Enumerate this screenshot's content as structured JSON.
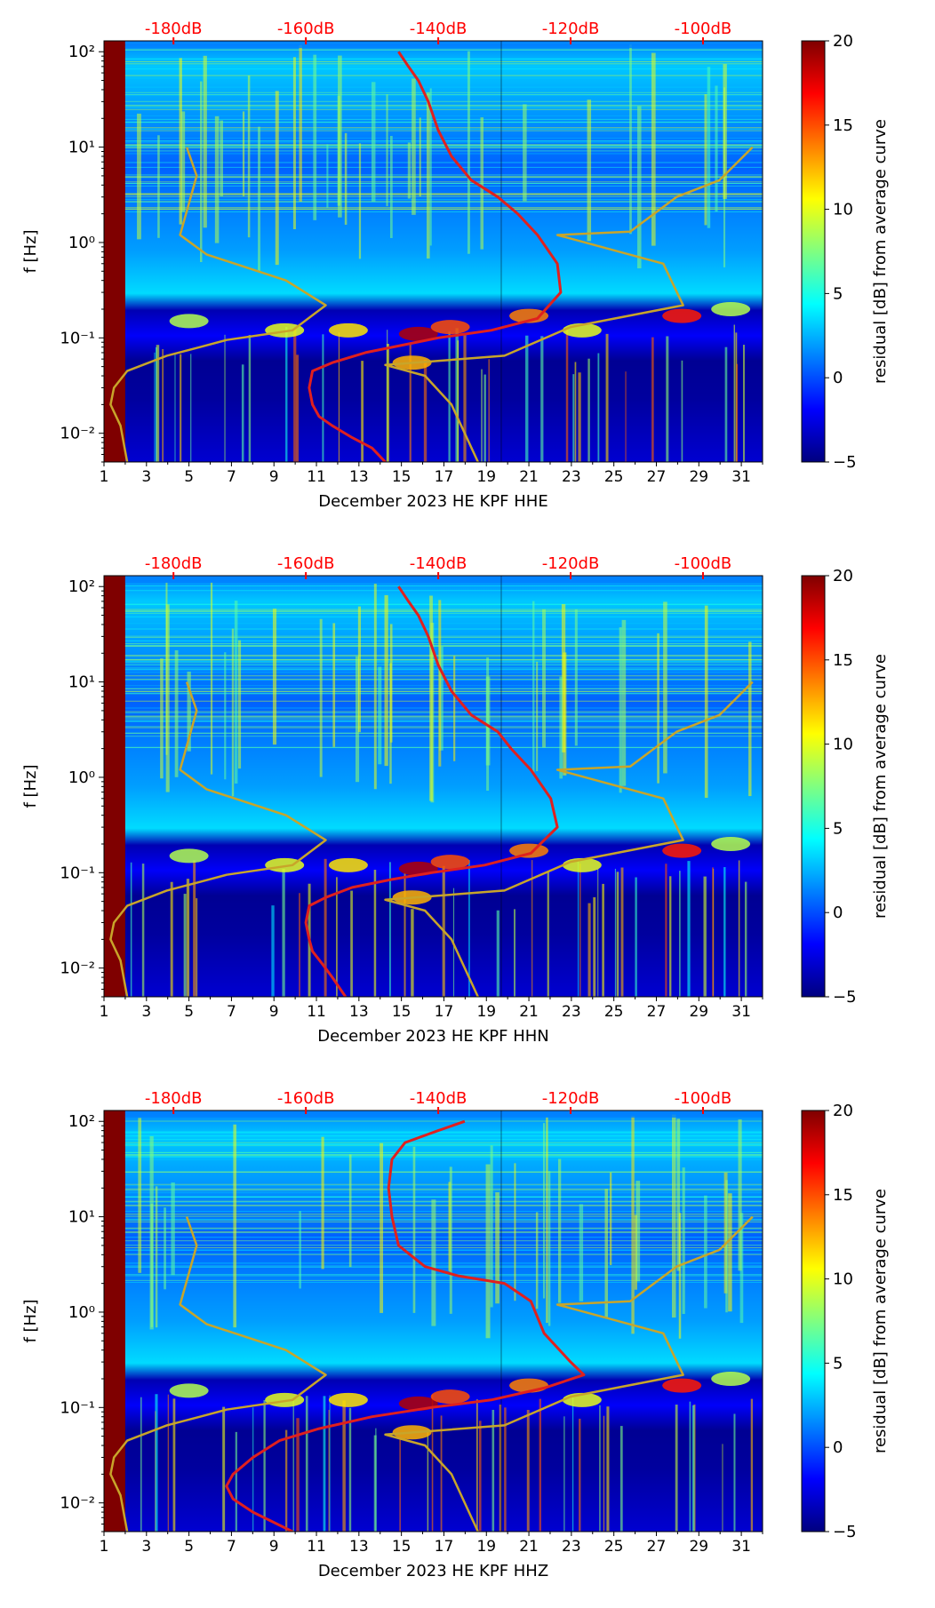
{
  "colors": {
    "colormap": [
      "#00007f",
      "#0000ff",
      "#0080ff",
      "#00ffff",
      "#80ff80",
      "#ffff00",
      "#ff8000",
      "#ff0000",
      "#7f0000"
    ],
    "psd_curve": "#e0201e",
    "noise_model": "#c8a52a",
    "db_axis_text": "#ff0000"
  },
  "chart_data": [
    {
      "type": "heatmap",
      "xlabel": "December 2023 HE KPF  HHE",
      "ylabel": "f [Hz]",
      "x_ticks": [
        "1",
        "3",
        "5",
        "7",
        "9",
        "11",
        "13",
        "15",
        "17",
        "19",
        "21",
        "23",
        "25",
        "27",
        "29",
        "31"
      ],
      "xlim": [
        1,
        32
      ],
      "y_ticks": [
        "10⁻²",
        "10⁻¹",
        "10⁰",
        "10¹",
        "10²"
      ],
      "ylim": [
        0.005,
        130
      ],
      "y_scale": "log",
      "top_ticks": [
        "-180dB",
        "-160dB",
        "-140dB",
        "-120dB",
        "-100dB"
      ],
      "top_range_db": [
        -190.5,
        -91
      ],
      "colorbar": {
        "label": "residual [dB] from average curve",
        "ticks": [
          "−5",
          "0",
          "5",
          "10",
          "15",
          "20"
        ],
        "range": [
          -5,
          20
        ]
      },
      "series": [
        {
          "x": [
            -146,
            -144.5,
            -143,
            -141.5,
            -140,
            -138,
            -135,
            -131,
            -128,
            -125,
            -122,
            -121.5,
            -125,
            -132,
            -140,
            -145,
            -151,
            -156,
            -159,
            -159.5,
            -159,
            -158,
            -156,
            -153,
            -150,
            -148
          ],
          "f": [
            100,
            70,
            50,
            30,
            15,
            8,
            4.5,
            3,
            2,
            1.2,
            0.6,
            0.3,
            0.16,
            0.12,
            0.1,
            0.085,
            0.07,
            0.055,
            0.045,
            0.03,
            0.02,
            0.015,
            0.012,
            0.009,
            0.007,
            0.005
          ]
        },
        {
          "x": [
            -178,
            -176.5,
            -179,
            -175,
            -163,
            -157,
            -162,
            -172,
            -176,
            -181,
            -187,
            -189,
            -189.5,
            -188,
            -187
          ],
          "f": [
            10,
            5,
            1.2,
            0.75,
            0.4,
            0.22,
            0.12,
            0.095,
            0.08,
            0.065,
            0.045,
            0.03,
            0.02,
            0.012,
            0.005
          ]
        },
        {
          "x": [
            -92.5,
            -97.5,
            -104,
            -111,
            -122,
            -106,
            -103,
            -120,
            -130,
            -148,
            -142,
            -138,
            -134
          ],
          "f": [
            10,
            4.5,
            3,
            1.3,
            1.2,
            0.6,
            0.22,
            0.13,
            0.065,
            0.052,
            0.04,
            0.02,
            0.005
          ]
        }
      ]
    },
    {
      "type": "heatmap",
      "xlabel": "December 2023 HE KPF  HHN",
      "ylabel": "f [Hz]",
      "x_ticks": [
        "1",
        "3",
        "5",
        "7",
        "9",
        "11",
        "13",
        "15",
        "17",
        "19",
        "21",
        "23",
        "25",
        "27",
        "29",
        "31"
      ],
      "xlim": [
        1,
        32
      ],
      "y_ticks": [
        "10⁻²",
        "10⁻¹",
        "10⁰",
        "10¹",
        "10²"
      ],
      "ylim": [
        0.005,
        130
      ],
      "y_scale": "log",
      "top_ticks": [
        "-180dB",
        "-160dB",
        "-140dB",
        "-120dB",
        "-100dB"
      ],
      "top_range_db": [
        -190.5,
        -91
      ],
      "colorbar": {
        "label": "residual [dB] from average curve",
        "ticks": [
          "−5",
          "0",
          "5",
          "10",
          "15",
          "20"
        ],
        "range": [
          -5,
          20
        ]
      },
      "series": [
        {
          "x": [
            -146,
            -144.5,
            -143,
            -141.5,
            -140,
            -138,
            -135,
            -131,
            -129,
            -126,
            -123,
            -122,
            -126,
            -133,
            -141,
            -147,
            -153,
            -157,
            -159.5,
            -160,
            -159.5,
            -159,
            -157.5,
            -156,
            -154
          ],
          "f": [
            100,
            70,
            50,
            30,
            15,
            8,
            4.5,
            3,
            2,
            1.2,
            0.6,
            0.3,
            0.16,
            0.12,
            0.1,
            0.085,
            0.07,
            0.055,
            0.045,
            0.03,
            0.02,
            0.015,
            0.011,
            0.008,
            0.005
          ]
        },
        {
          "x": [
            -178,
            -176.5,
            -179,
            -175,
            -163,
            -157,
            -162,
            -172,
            -176,
            -181,
            -187,
            -189,
            -189.5,
            -188,
            -187
          ],
          "f": [
            10,
            5,
            1.2,
            0.75,
            0.4,
            0.22,
            0.12,
            0.095,
            0.08,
            0.065,
            0.045,
            0.03,
            0.02,
            0.012,
            0.005
          ]
        },
        {
          "x": [
            -92.5,
            -97.5,
            -104,
            -111,
            -122,
            -106,
            -103,
            -120,
            -130,
            -148,
            -142,
            -138,
            -134
          ],
          "f": [
            10,
            4.5,
            3,
            1.3,
            1.2,
            0.6,
            0.22,
            0.13,
            0.065,
            0.052,
            0.04,
            0.02,
            0.005
          ]
        }
      ]
    },
    {
      "type": "heatmap",
      "xlabel": "December 2023 HE KPF  HHZ",
      "ylabel": "f [Hz]",
      "x_ticks": [
        "1",
        "3",
        "5",
        "7",
        "9",
        "11",
        "13",
        "15",
        "17",
        "19",
        "21",
        "23",
        "25",
        "27",
        "29",
        "31"
      ],
      "xlim": [
        1,
        32
      ],
      "y_ticks": [
        "10⁻²",
        "10⁻¹",
        "10⁰",
        "10¹",
        "10²"
      ],
      "ylim": [
        0.005,
        130
      ],
      "y_scale": "log",
      "top_ticks": [
        "-180dB",
        "-160dB",
        "-140dB",
        "-120dB",
        "-100dB"
      ],
      "top_range_db": [
        -190.5,
        -91
      ],
      "colorbar": {
        "label": "residual [dB] from average curve",
        "ticks": [
          "−5",
          "0",
          "5",
          "10",
          "15",
          "20"
        ],
        "range": [
          -5,
          20
        ]
      },
      "series": [
        {
          "x": [
            -136,
            -140,
            -145,
            -147,
            -147.5,
            -147,
            -146,
            -142,
            -137,
            -130,
            -126,
            -124,
            -120,
            -118,
            -124,
            -132,
            -141,
            -150,
            -158,
            -164,
            -168,
            -171,
            -172,
            -171,
            -168,
            -162
          ],
          "f": [
            100,
            80,
            60,
            40,
            20,
            10,
            5,
            3,
            2.4,
            2,
            1.3,
            0.6,
            0.3,
            0.22,
            0.16,
            0.12,
            0.1,
            0.08,
            0.06,
            0.045,
            0.03,
            0.02,
            0.015,
            0.011,
            0.008,
            0.005
          ]
        },
        {
          "x": [
            -178,
            -176.5,
            -179,
            -175,
            -163,
            -157,
            -162,
            -172,
            -176,
            -181,
            -187,
            -189,
            -189.5,
            -188,
            -187
          ],
          "f": [
            10,
            5,
            1.2,
            0.75,
            0.4,
            0.22,
            0.12,
            0.095,
            0.08,
            0.065,
            0.045,
            0.03,
            0.02,
            0.012,
            0.005
          ]
        },
        {
          "x": [
            -92.5,
            -97.5,
            -104,
            -111,
            -122,
            -106,
            -103,
            -120,
            -130,
            -148,
            -142,
            -138,
            -134
          ],
          "f": [
            10,
            4.5,
            3,
            1.3,
            1.2,
            0.6,
            0.22,
            0.13,
            0.065,
            0.052,
            0.04,
            0.02,
            0.005
          ]
        }
      ]
    }
  ]
}
